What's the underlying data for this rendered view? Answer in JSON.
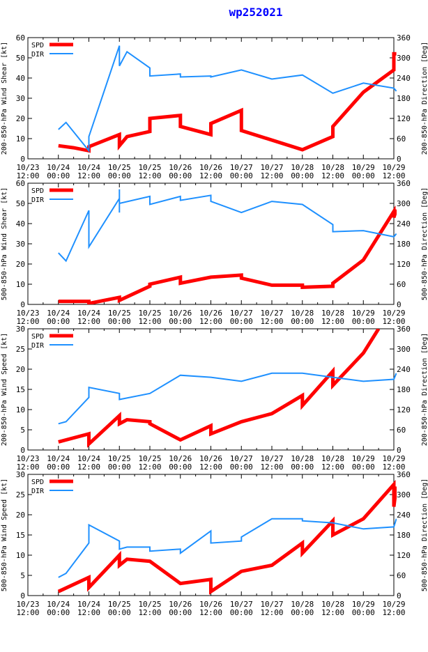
{
  "title": "wp252021",
  "colors": {
    "spd": "#ff0000",
    "dir": "#1e90ff",
    "title": "#0000ff"
  },
  "x_ticks": [
    {
      "top": "10/23",
      "bottom": "12:00"
    },
    {
      "top": "10/24",
      "bottom": "00:00"
    },
    {
      "top": "10/24",
      "bottom": "12:00"
    },
    {
      "top": "10/25",
      "bottom": "00:00"
    },
    {
      "top": "10/25",
      "bottom": "12:00"
    },
    {
      "top": "10/26",
      "bottom": "00:00"
    },
    {
      "top": "10/26",
      "bottom": "12:00"
    },
    {
      "top": "10/27",
      "bottom": "00:00"
    },
    {
      "top": "10/27",
      "bottom": "12:00"
    },
    {
      "top": "10/28",
      "bottom": "00:00"
    },
    {
      "top": "10/28",
      "bottom": "12:00"
    },
    {
      "top": "10/29",
      "bottom": "00:00"
    },
    {
      "top": "10/29",
      "bottom": "12:00"
    }
  ],
  "chart_data": [
    {
      "type": "line",
      "ylabel": "200-850-hPa Wind Shear [kt]",
      "y2label": "200-850-hPa Direction [Deg]",
      "ylim": [
        0,
        60
      ],
      "yticks": [
        0,
        10,
        20,
        30,
        40,
        50,
        60
      ],
      "y2lim": [
        0,
        360
      ],
      "y2ticks": [
        0,
        60,
        120,
        180,
        240,
        300,
        360
      ],
      "xlim_hours": [
        0,
        144
      ],
      "legend": {
        "position": "top-left",
        "entries": [
          "SPD",
          "DIR"
        ]
      },
      "series": [
        {
          "name": "SPD",
          "axis": "left",
          "points": [
            [
              12,
              6.5
            ],
            [
              18,
              5.5
            ],
            [
              24,
              4
            ],
            [
              24,
              6
            ],
            [
              36,
              12
            ],
            [
              36,
              6.5
            ],
            [
              39,
              11
            ],
            [
              48,
              13.5
            ],
            [
              48,
              20
            ],
            [
              60,
              21.5
            ],
            [
              60,
              16
            ],
            [
              72,
              12
            ],
            [
              72,
              17.5
            ],
            [
              84,
              24
            ],
            [
              84,
              14
            ],
            [
              108,
              4.5
            ],
            [
              120,
              11
            ],
            [
              120,
              16
            ],
            [
              132,
              33
            ],
            [
              144,
              44
            ],
            [
              144,
              52
            ],
            [
              145,
              52
            ]
          ]
        },
        {
          "name": "DIR",
          "axis": "left",
          "points": [
            [
              12,
              14.5
            ],
            [
              15,
              18
            ],
            [
              24,
              4
            ],
            [
              24,
              11
            ],
            [
              36,
              56
            ],
            [
              36,
              46
            ],
            [
              39,
              53
            ],
            [
              48,
              45
            ],
            [
              48,
              41
            ],
            [
              60,
              42
            ],
            [
              60,
              40.5
            ],
            [
              72,
              41
            ],
            [
              72,
              40.5
            ],
            [
              84,
              44
            ],
            [
              96,
              39.5
            ],
            [
              108,
              41.5
            ],
            [
              120,
              32.5
            ],
            [
              132,
              37.5
            ],
            [
              144,
              35
            ],
            [
              145,
              33.5
            ]
          ]
        }
      ]
    },
    {
      "type": "line",
      "ylabel": "500-850-hPa Wind Shear [kt]",
      "y2label": "500-850-hPa Direction [Deg]",
      "ylim": [
        0,
        60
      ],
      "yticks": [
        0,
        10,
        20,
        30,
        40,
        50,
        60
      ],
      "y2lim": [
        0,
        360
      ],
      "y2ticks": [
        0,
        60,
        120,
        180,
        240,
        300,
        360
      ],
      "xlim_hours": [
        0,
        144
      ],
      "legend": {
        "position": "top-left",
        "entries": [
          "SPD",
          "DIR"
        ]
      },
      "series": [
        {
          "name": "SPD",
          "axis": "left",
          "points": [
            [
              12,
              1.5
            ],
            [
              24,
              1.5
            ],
            [
              24,
              0.5
            ],
            [
              36,
              3.5
            ],
            [
              36,
              2
            ],
            [
              48,
              9
            ],
            [
              48,
              10
            ],
            [
              60,
              13.5
            ],
            [
              60,
              10.5
            ],
            [
              72,
              13.5
            ],
            [
              84,
              14.5
            ],
            [
              84,
              13
            ],
            [
              96,
              9.5
            ],
            [
              108,
              9.5
            ],
            [
              108,
              8.5
            ],
            [
              120,
              9
            ],
            [
              120,
              10.5
            ],
            [
              132,
              22
            ],
            [
              144,
              46
            ],
            [
              144,
              43
            ],
            [
              145,
              47
            ]
          ]
        },
        {
          "name": "DIR",
          "axis": "left",
          "points": [
            [
              12,
              25.5
            ],
            [
              15,
              21.5
            ],
            [
              24,
              46.5
            ],
            [
              24,
              28.5
            ],
            [
              36,
              52.5
            ],
            [
              36,
              45.5
            ],
            [
              36,
              57
            ],
            [
              36,
              50
            ],
            [
              48,
              53.5
            ],
            [
              48,
              49.5
            ],
            [
              60,
              53.5
            ],
            [
              60,
              51.5
            ],
            [
              72,
              54
            ],
            [
              72,
              51
            ],
            [
              84,
              45.5
            ],
            [
              96,
              51
            ],
            [
              108,
              49.5
            ],
            [
              120,
              39.5
            ],
            [
              120,
              36
            ],
            [
              132,
              36.5
            ],
            [
              144,
              33.5
            ],
            [
              145,
              35
            ]
          ]
        }
      ]
    },
    {
      "type": "line",
      "ylabel": "200-850-hPa Wind Speed [kt]",
      "y2label": "200-850-hPa Direction [Deg]",
      "ylim": [
        0,
        30
      ],
      "yticks": [
        0,
        5,
        10,
        15,
        20,
        25,
        30
      ],
      "y2lim": [
        0,
        360
      ],
      "y2ticks": [
        0,
        60,
        120,
        180,
        240,
        300,
        360
      ],
      "xlim_hours": [
        0,
        144
      ],
      "legend": {
        "position": "top-left",
        "entries": [
          "SPD",
          "DIR"
        ]
      },
      "series": [
        {
          "name": "SPD",
          "axis": "left",
          "points": [
            [
              12,
              2
            ],
            [
              24,
              4
            ],
            [
              24,
              1.5
            ],
            [
              36,
              8.5
            ],
            [
              36,
              6.5
            ],
            [
              39,
              7.5
            ],
            [
              48,
              7
            ],
            [
              48,
              6.5
            ],
            [
              60,
              2.5
            ],
            [
              72,
              6
            ],
            [
              72,
              4
            ],
            [
              84,
              7
            ],
            [
              96,
              9
            ],
            [
              108,
              13.5
            ],
            [
              108,
              11
            ],
            [
              120,
              19.5
            ],
            [
              120,
              16
            ],
            [
              132,
              24
            ],
            [
              138,
              30
            ]
          ]
        },
        {
          "name": "DIR",
          "axis": "right",
          "points": [
            [
              12,
              78
            ],
            [
              15,
              84
            ],
            [
              24,
              156
            ],
            [
              24,
              186
            ],
            [
              36,
              168
            ],
            [
              36,
              150
            ],
            [
              48,
              168
            ],
            [
              60,
              222
            ],
            [
              72,
              216
            ],
            [
              84,
              204
            ],
            [
              96,
              228
            ],
            [
              108,
              228
            ],
            [
              120,
              216
            ],
            [
              132,
              204
            ],
            [
              144,
              210
            ],
            [
              145,
              228
            ]
          ]
        }
      ]
    },
    {
      "type": "line",
      "ylabel": "500-850-hPa Wind Speed [kt]",
      "y2label": "500-850-hPa Direction [Deg]",
      "ylim": [
        0,
        30
      ],
      "yticks": [
        0,
        5,
        10,
        15,
        20,
        25,
        30
      ],
      "y2lim": [
        0,
        360
      ],
      "y2ticks": [
        0,
        60,
        120,
        180,
        240,
        300,
        360
      ],
      "xlim_hours": [
        0,
        144
      ],
      "legend": {
        "position": "top-left",
        "entries": [
          "SPD",
          "DIR"
        ]
      },
      "series": [
        {
          "name": "SPD",
          "axis": "left",
          "points": [
            [
              12,
              1
            ],
            [
              24,
              4.5
            ],
            [
              24,
              2
            ],
            [
              36,
              10
            ],
            [
              36,
              7.5
            ],
            [
              39,
              9
            ],
            [
              48,
              8.5
            ],
            [
              60,
              3
            ],
            [
              72,
              4
            ],
            [
              72,
              1
            ],
            [
              84,
              6
            ],
            [
              96,
              7.5
            ],
            [
              108,
              13
            ],
            [
              108,
              10.5
            ],
            [
              120,
              18.5
            ],
            [
              120,
              15
            ],
            [
              132,
              19
            ],
            [
              144,
              27.5
            ],
            [
              144,
              22
            ],
            [
              145,
              27
            ]
          ]
        },
        {
          "name": "DIR",
          "axis": "right",
          "points": [
            [
              12,
              54
            ],
            [
              15,
              66
            ],
            [
              24,
              156
            ],
            [
              24,
              210
            ],
            [
              36,
              162
            ],
            [
              36,
              138
            ],
            [
              39,
              144
            ],
            [
              48,
              144
            ],
            [
              48,
              132
            ],
            [
              60,
              138
            ],
            [
              60,
              126
            ],
            [
              72,
              192
            ],
            [
              72,
              156
            ],
            [
              84,
              162
            ],
            [
              84,
              174
            ],
            [
              96,
              228
            ],
            [
              108,
              228
            ],
            [
              108,
              222
            ],
            [
              120,
              216
            ],
            [
              132,
              198
            ],
            [
              144,
              204
            ],
            [
              145,
              228
            ]
          ]
        }
      ]
    }
  ]
}
